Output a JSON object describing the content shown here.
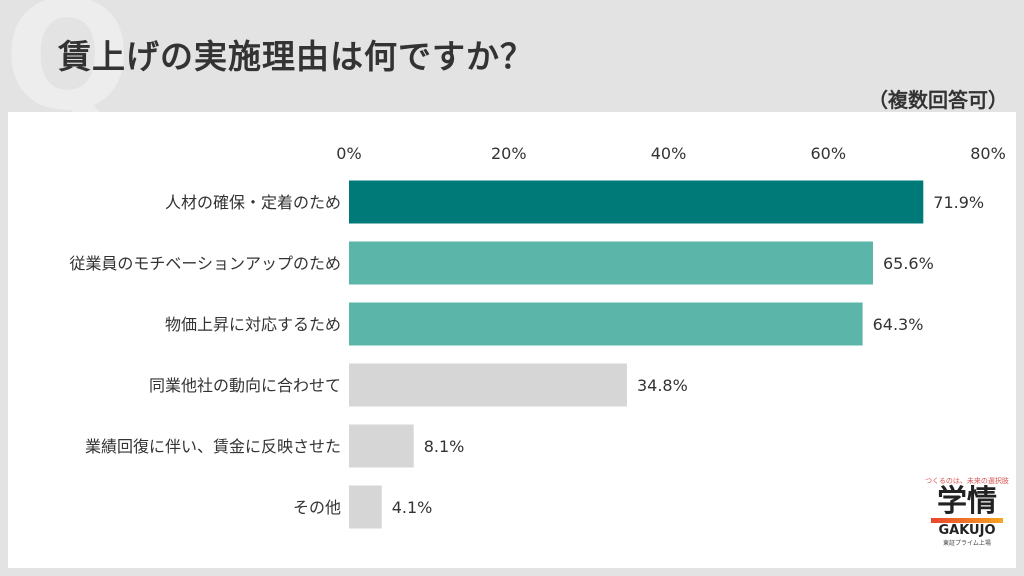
{
  "header": {
    "q_letter": "Q",
    "title": "賃上げの実施理由は何ですか？",
    "note": "（複数回答可）"
  },
  "logo": {
    "tagline": "つくるのは、未来の選択肢",
    "name": "学情",
    "name_en": "GAKUJO",
    "sub": "東証プライム上場"
  },
  "chart_data": {
    "type": "bar",
    "orientation": "horizontal",
    "categories": [
      "人材の確保・定着のため",
      "従業員のモチベーションアップのため",
      "物価上昇に対応するため",
      "同業他社の動向に合わせて",
      "業績回復に伴い、賃金に反映させた",
      "その他"
    ],
    "values": [
      71.9,
      65.6,
      64.3,
      34.8,
      8.1,
      4.1
    ],
    "value_labels": [
      "71.9%",
      "65.6%",
      "64.3%",
      "34.8%",
      "8.1%",
      "4.1%"
    ],
    "xlim": [
      0,
      80
    ],
    "ticks": [
      0,
      20,
      40,
      60,
      80
    ],
    "tick_labels": [
      "0%",
      "20%",
      "40%",
      "60%",
      "80%"
    ],
    "bar_colors": [
      "#007a78",
      "#5bb5a8",
      "#5bb5a8",
      "#d6d6d6",
      "#d6d6d6",
      "#d6d6d6"
    ],
    "grid": false,
    "legend": "none"
  }
}
